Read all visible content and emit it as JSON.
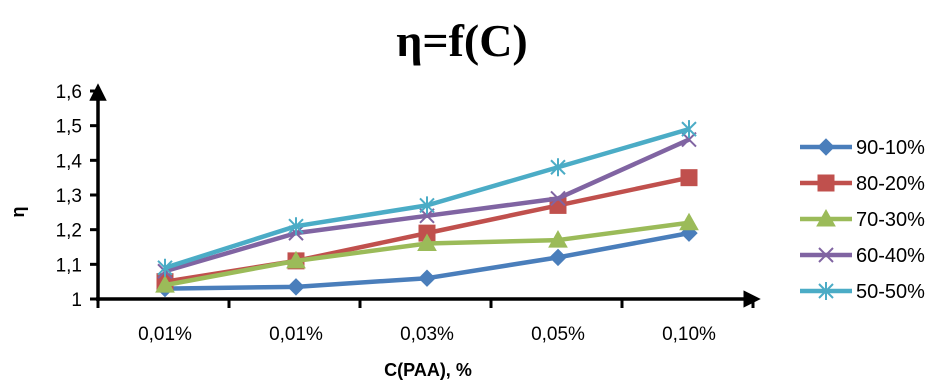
{
  "chart_data": {
    "type": "line",
    "title": "η=f(C)",
    "xlabel": "C(PAA), %",
    "ylabel": "η",
    "categories": [
      "0,01%",
      "0,01%",
      "0,03%",
      "0,05%",
      "0,10%"
    ],
    "ylim": [
      1,
      1.6
    ],
    "yticks": [
      1,
      1.1,
      1.2,
      1.3,
      1.4,
      1.5,
      1.6
    ],
    "ytick_labels": [
      "1",
      "1,1",
      "1,2",
      "1,3",
      "1,4",
      "1,5",
      "1,6"
    ],
    "grid": false,
    "legend_position": "right",
    "series": [
      {
        "name": "90-10%",
        "values": [
          1.03,
          1.035,
          1.06,
          1.12,
          1.19
        ],
        "color": "#4A7EBB",
        "marker": "diamond"
      },
      {
        "name": "80-20%",
        "values": [
          1.05,
          1.11,
          1.19,
          1.27,
          1.35
        ],
        "color": "#C0504D",
        "marker": "square"
      },
      {
        "name": "70-30%",
        "values": [
          1.04,
          1.11,
          1.16,
          1.17,
          1.22
        ],
        "color": "#9BBB59",
        "marker": "triangle"
      },
      {
        "name": "60-40%",
        "values": [
          1.08,
          1.19,
          1.24,
          1.29,
          1.46
        ],
        "color": "#8064A2",
        "marker": "x"
      },
      {
        "name": "50-50%",
        "values": [
          1.09,
          1.21,
          1.27,
          1.38,
          1.49
        ],
        "color": "#4BACC6",
        "marker": "star"
      }
    ]
  }
}
